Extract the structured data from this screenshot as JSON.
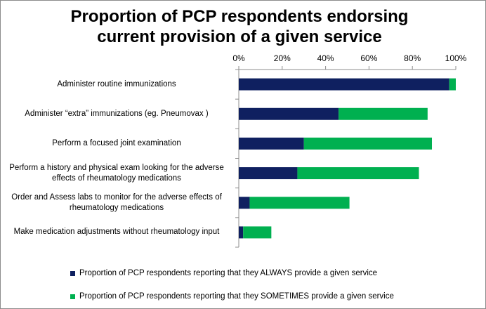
{
  "chart_data": {
    "type": "bar",
    "orientation": "horizontal",
    "stacked": true,
    "title": "Proportion of PCP respondents endorsing current provision of a given service",
    "title_lines": [
      "Proportion of PCP respondents endorsing",
      "current provision of a given service"
    ],
    "xlabel": "",
    "ylabel": "",
    "xlim": [
      0,
      100
    ],
    "x_ticks": [
      0,
      20,
      40,
      60,
      80,
      100
    ],
    "x_tick_labels": [
      "0%",
      "20%",
      "40%",
      "60%",
      "80%",
      "100%"
    ],
    "categories": [
      "Administer routine immunizations",
      "Administer “extra”  immunizations (eg. Pneumovax )",
      "Perform a focused joint examination",
      "Perform a history and physical exam looking for the adverse effects of rheumatology medications",
      "Order and Assess labs to monitor for the adverse effects of rheumatology medications",
      "Make medication adjustments without rheumatology input"
    ],
    "category_lines": [
      [
        "Administer routine immunizations"
      ],
      [
        "Administer “extra”  immunizations (eg. Pneumovax )"
      ],
      [
        "Perform a focused joint examination"
      ],
      [
        "Perform a history and physical exam looking for the adverse",
        "effects of rheumatology medications"
      ],
      [
        "Order and Assess labs to monitor for the adverse effects of",
        "rheumatology medications"
      ],
      [
        "Make medication adjustments without rheumatology input"
      ]
    ],
    "series": [
      {
        "name": "Proportion of PCP respondents reporting that they ALWAYS provide a given service",
        "color": "#0f2060",
        "values": [
          97,
          46,
          30,
          27,
          5,
          2
        ]
      },
      {
        "name": "Proportion of PCP respondents reporting that they SOMETIMES provide a given service",
        "color": "#00b050",
        "values": [
          3,
          41,
          59,
          56,
          46,
          13
        ]
      }
    ],
    "grid": false,
    "legend_position": "bottom"
  }
}
